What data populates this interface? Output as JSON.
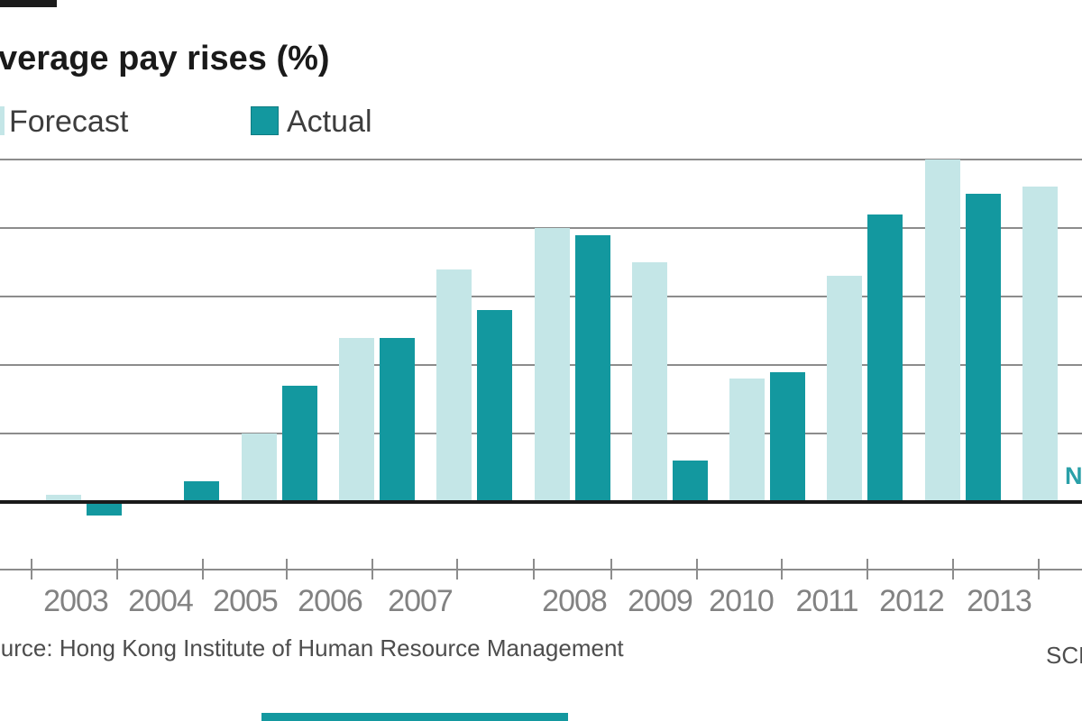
{
  "page": {
    "source": "Source: Hong Kong Institute of Human Resource Management",
    "credit": "SCMP"
  },
  "legend": {
    "forecast_label": "Forecast",
    "actual_label": "Actual"
  },
  "colors": {
    "forecast": "#c4e6e7",
    "actual": "#13989f",
    "gridline": "#8c8c8c",
    "zero_line": "#1a1a1a",
    "axis": "#8c8c8c",
    "year_label": "#828282",
    "na_text": "#2aa0a8",
    "title_text": "#1a1a1a",
    "source_text": "#4d4d4d"
  },
  "chart_data": {
    "type": "bar",
    "title": "Average pay rises (%)",
    "categories": [
      "2003",
      "2004",
      "2005",
      "2006",
      "2007",
      "2008",
      "2009",
      "2010",
      "2011",
      "2012",
      "2013"
    ],
    "series": [
      {
        "name": "Forecast",
        "values": [
          0.1,
          0,
          1.0,
          2.4,
          3.4,
          4.0,
          3.5,
          1.8,
          3.3,
          5.0,
          4.6
        ]
      },
      {
        "name": "Actual",
        "values": [
          -0.2,
          0.3,
          1.7,
          2.4,
          2.8,
          3.9,
          0.6,
          1.9,
          4.2,
          4.5,
          null
        ]
      }
    ],
    "na_label": "NA",
    "xlabel": "",
    "ylabel": "",
    "ylim": [
      -0.6,
      5.2
    ],
    "gridline_step_pct": 1,
    "grid": true,
    "legend_position": "top-left"
  }
}
